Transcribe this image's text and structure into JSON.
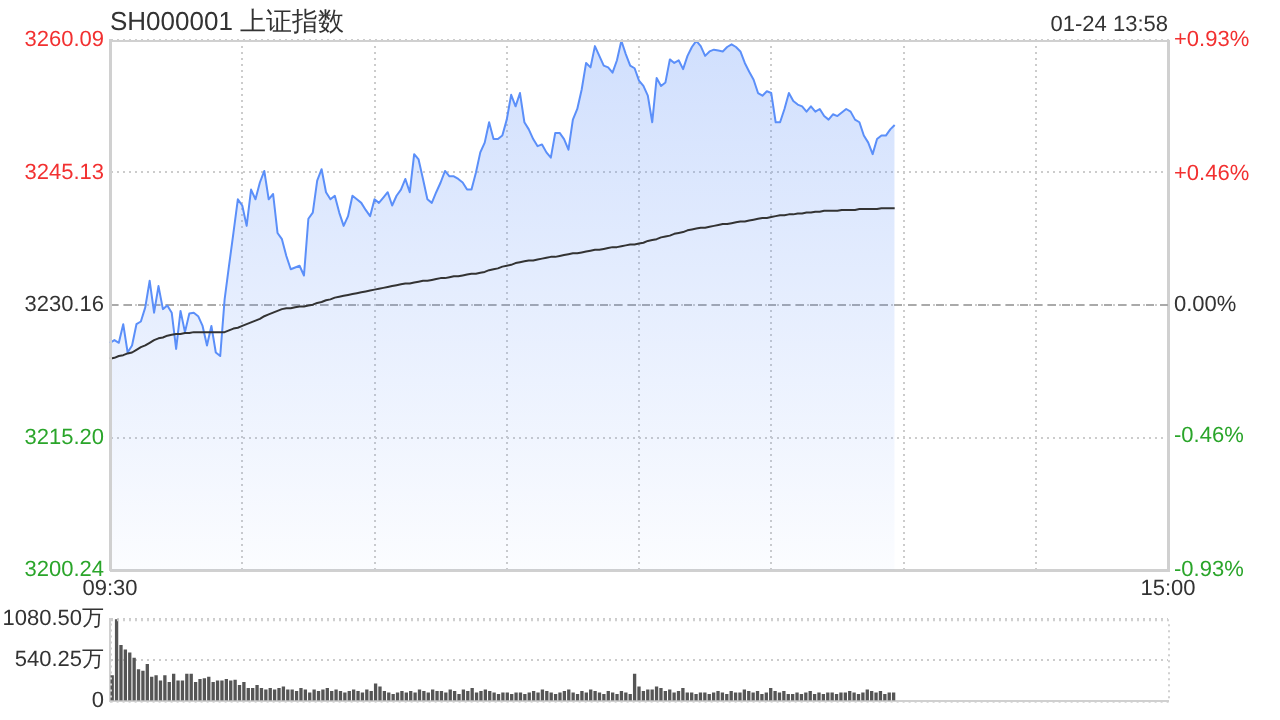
{
  "chart_data": [
    {
      "type": "area",
      "title": "SH000001 上证指数",
      "annotations": [
        "01-24 13:58"
      ],
      "categories": [
        "09:30",
        null,
        null,
        null,
        null,
        null,
        null,
        null,
        null,
        null,
        null,
        null,
        null,
        null,
        null,
        null,
        null,
        null,
        null,
        null,
        null,
        null,
        null,
        null,
        null,
        null,
        null,
        null,
        null,
        null,
        null,
        null,
        null,
        null,
        null,
        null,
        null,
        null,
        null,
        null,
        null,
        null,
        null,
        null,
        null,
        null,
        null,
        null,
        null,
        null,
        null,
        null,
        null,
        null,
        null,
        null,
        null,
        null,
        null,
        null,
        null,
        null,
        null,
        null,
        null,
        null,
        null,
        null,
        null,
        null,
        null,
        null,
        null,
        null,
        null,
        null,
        null,
        null,
        null,
        null,
        null,
        null,
        null,
        null,
        null,
        null,
        null,
        null,
        null,
        null,
        null,
        null,
        null,
        null,
        null,
        null,
        null,
        null,
        null,
        null,
        null,
        null,
        null,
        null,
        null,
        null,
        null,
        null,
        null,
        null,
        null,
        null,
        null,
        null,
        null,
        null,
        null,
        null,
        null,
        null,
        null,
        null,
        null,
        null,
        null,
        null,
        null,
        null,
        null,
        null,
        null,
        null,
        null,
        null,
        null,
        null,
        null,
        null,
        null,
        null,
        null,
        null,
        null,
        null,
        null,
        null,
        null,
        null,
        null,
        null,
        null,
        null,
        null,
        null,
        null,
        null,
        null,
        null,
        null,
        null,
        null,
        null,
        null,
        null,
        null,
        null,
        null,
        null,
        null,
        null,
        null,
        null,
        null,
        null,
        null,
        null,
        null,
        null,
        null,
        null,
        null,
        null,
        null,
        null,
        null,
        null,
        null,
        null,
        null,
        null,
        null,
        null,
        null,
        null,
        null,
        null,
        null,
        null,
        null,
        null,
        null,
        null,
        null,
        null,
        null,
        null,
        null,
        null,
        null,
        null,
        null,
        null,
        null,
        null,
        null,
        null,
        null,
        null,
        null,
        null,
        null,
        null,
        null,
        null,
        null,
        null,
        null,
        null,
        null,
        null,
        null,
        null,
        null,
        null,
        null,
        null,
        null,
        null,
        null,
        null,
        "15:00"
      ],
      "ylim": [
        3200.24,
        3260.09
      ],
      "yticks": [
        3200.24,
        {
          "value": 3215.2,
          "label": "3215.20"
        },
        3230.16,
        3245.13,
        3260.09
      ],
      "y2lim": [
        -0.93,
        0.93
      ],
      "y2ticks": [
        {
          "value": -0.93,
          "label": "-0.93%"
        },
        {
          "value": -0.46,
          "label": "-0.46%"
        },
        {
          "value": 0,
          "label": "0.00%"
        },
        {
          "value": 0.46,
          "label": "+0.46%"
        },
        {
          "value": 0.93,
          "label": "+0.93%"
        }
      ],
      "grid": true,
      "ref_lines": [
        {
          "axis": "y",
          "value": 3230.16,
          "line_style": "dashed",
          "color": "#aaaaaa"
        }
      ],
      "series": [
        {
          "type": "area",
          "color": "#5b8ff9",
          "values": [
            3225.9,
            3226.2,
            3225.9,
            3228.0,
            3224.8,
            3225.6,
            3228.0,
            3228.3,
            3229.9,
            3232.9,
            3229.3,
            3232.3,
            3229.7,
            3230.1,
            3229.3,
            3225.2,
            3229.5,
            3227.1,
            3229.2,
            3229.3,
            3228.9,
            3227.8,
            3225.6,
            3227.8,
            3224.8,
            3224.4,
            3230.8,
            3234.6,
            3238.3,
            3242.1,
            3241.4,
            3239.1,
            3243.2,
            3242.1,
            3244.0,
            3245.3,
            3242.1,
            3242.7,
            3238.3,
            3237.6,
            3235.7,
            3234.2,
            3234.4,
            3234.6,
            3233.5,
            3239.9,
            3240.6,
            3244.2,
            3245.5,
            3242.9,
            3242.1,
            3242.5,
            3240.6,
            3239.1,
            3240.2,
            3242.5,
            3242.1,
            3241.7,
            3240.9,
            3240.2,
            3242.1,
            3241.7,
            3242.3,
            3242.9,
            3241.4,
            3242.5,
            3243.2,
            3244.4,
            3242.9,
            3247.2,
            3246.6,
            3244.4,
            3242.1,
            3241.7,
            3242.9,
            3244.0,
            3245.3,
            3244.7,
            3244.7,
            3244.4,
            3244.0,
            3243.2,
            3243.2,
            3245.1,
            3247.4,
            3248.5,
            3250.8,
            3248.9,
            3248.9,
            3249.3,
            3251.1,
            3253.9,
            3252.6,
            3254.1,
            3250.8,
            3250.0,
            3248.9,
            3248.1,
            3248.3,
            3247.4,
            3246.8,
            3249.6,
            3249.6,
            3248.9,
            3247.7,
            3251.1,
            3252.3,
            3254.5,
            3257.5,
            3257.0,
            3259.4,
            3258.3,
            3257.2,
            3257.0,
            3256.4,
            3257.8,
            3260.0,
            3258.5,
            3257.2,
            3256.9,
            3255.5,
            3254.9,
            3253.8,
            3250.8,
            3255.8,
            3254.9,
            3255.3,
            3257.9,
            3257.5,
            3257.8,
            3256.8,
            3258.3,
            3259.3,
            3260.0,
            3259.4,
            3258.3,
            3258.8,
            3259.0,
            3258.9,
            3258.8,
            3259.3,
            3259.6,
            3259.3,
            3258.8,
            3257.5,
            3256.5,
            3255.6,
            3254.1,
            3253.8,
            3254.3,
            3254.1,
            3250.8,
            3250.8,
            3252.3,
            3254.1,
            3253.2,
            3252.8,
            3252.6,
            3252.0,
            3252.6,
            3252.0,
            3252.3,
            3251.5,
            3251.1,
            3251.7,
            3251.5,
            3251.9,
            3252.3,
            3252.0,
            3251.1,
            3250.8,
            3249.3,
            3248.5,
            3247.2,
            3248.9,
            3249.3,
            3249.3,
            3250.0,
            3250.5,
            null,
            null,
            null,
            null,
            null,
            null,
            null,
            null,
            null,
            null,
            null,
            null,
            null,
            null,
            null,
            null,
            null,
            null,
            null,
            null,
            null,
            null,
            null,
            null,
            null,
            null,
            null,
            null,
            null,
            null,
            null,
            null,
            null,
            null,
            null,
            null,
            null,
            null,
            null,
            null,
            null,
            null,
            null,
            null,
            null,
            null,
            null,
            null,
            null,
            null,
            null,
            null,
            null,
            null,
            null,
            null,
            null,
            null,
            null,
            null,
            null,
            null
          ]
        },
        {
          "type": "line",
          "color": "#333333",
          "values": [
            3224.1,
            3224.2,
            3224.4,
            3224.5,
            3224.7,
            3224.8,
            3225.1,
            3225.4,
            3225.6,
            3225.9,
            3226.2,
            3226.4,
            3226.5,
            3226.7,
            3226.8,
            3226.9,
            3226.9,
            3227.0,
            3227.0,
            3227.1,
            3227.1,
            3227.1,
            3227.1,
            3227.1,
            3227.1,
            3227.1,
            3227.1,
            3227.3,
            3227.5,
            3227.6,
            3227.8,
            3228.0,
            3228.2,
            3228.4,
            3228.6,
            3228.9,
            3229.1,
            3229.3,
            3229.5,
            3229.7,
            3229.8,
            3229.8,
            3229.9,
            3230.0,
            3230.0,
            3230.1,
            3230.2,
            3230.4,
            3230.5,
            3230.7,
            3230.8,
            3231.0,
            3231.1,
            3231.2,
            3231.3,
            3231.4,
            3231.5,
            3231.6,
            3231.7,
            3231.8,
            3231.9,
            3232.0,
            3232.1,
            3232.2,
            3232.3,
            3232.4,
            3232.5,
            3232.6,
            3232.6,
            3232.7,
            3232.8,
            3232.9,
            3232.9,
            3233.0,
            3233.1,
            3233.2,
            3233.2,
            3233.3,
            3233.4,
            3233.4,
            3233.5,
            3233.6,
            3233.7,
            3233.7,
            3233.8,
            3233.9,
            3234.1,
            3234.2,
            3234.3,
            3234.5,
            3234.6,
            3234.7,
            3234.9,
            3235.0,
            3235.1,
            3235.2,
            3235.2,
            3235.3,
            3235.4,
            3235.5,
            3235.6,
            3235.6,
            3235.7,
            3235.8,
            3235.9,
            3236.0,
            3236.0,
            3236.1,
            3236.2,
            3236.3,
            3236.4,
            3236.4,
            3236.5,
            3236.6,
            3236.7,
            3236.7,
            3236.8,
            3236.9,
            3237.0,
            3237.0,
            3237.1,
            3237.2,
            3237.4,
            3237.5,
            3237.6,
            3237.8,
            3237.9,
            3238.0,
            3238.2,
            3238.3,
            3238.4,
            3238.6,
            3238.7,
            3238.8,
            3238.9,
            3238.9,
            3239.0,
            3239.1,
            3239.2,
            3239.3,
            3239.3,
            3239.4,
            3239.5,
            3239.6,
            3239.6,
            3239.7,
            3239.8,
            3239.9,
            3240.0,
            3240.0,
            3240.1,
            3240.2,
            3240.3,
            3240.3,
            3240.4,
            3240.4,
            3240.5,
            3240.5,
            3240.6,
            3240.6,
            3240.7,
            3240.7,
            3240.8,
            3240.8,
            3240.8,
            3240.8,
            3240.9,
            3240.9,
            3240.9,
            3240.9,
            3241.0,
            3241.0,
            3241.0,
            3241.0,
            3241.0,
            3241.1,
            3241.1,
            3241.1,
            3241.1,
            null,
            null,
            null,
            null,
            null,
            null,
            null,
            null,
            null,
            null,
            null,
            null,
            null,
            null,
            null,
            null,
            null,
            null,
            null,
            null,
            null,
            null,
            null,
            null,
            null,
            null,
            null,
            null,
            null,
            null,
            null,
            null,
            null,
            null,
            null,
            null,
            null,
            null,
            null,
            null,
            null,
            null,
            null,
            null,
            null,
            null,
            null,
            null,
            null,
            null,
            null,
            null,
            null,
            null,
            null,
            null,
            null,
            null,
            null,
            null,
            null,
            null
          ]
        }
      ]
    },
    {
      "type": "bar",
      "ylim": [
        0,
        1080.5
      ],
      "yticks": [
        0,
        {
          "value": 540.25,
          "label": "540.25万"
        },
        {
          "value": 1080.5,
          "label": "1080.50万"
        }
      ],
      "grid": "y",
      "tick_labels": "y",
      "color": "#555555",
      "categories": [
        null,
        null,
        null,
        null,
        null,
        null,
        null,
        null,
        null,
        null,
        null,
        null,
        null,
        null,
        null,
        null,
        null,
        null,
        null,
        null,
        null,
        null,
        null,
        null,
        null,
        null,
        null,
        null,
        null,
        null,
        null,
        null,
        null,
        null,
        null,
        null,
        null,
        null,
        null,
        null,
        null,
        null,
        null,
        null,
        null,
        null,
        null,
        null,
        null,
        null,
        null,
        null,
        null,
        null,
        null,
        null,
        null,
        null,
        null,
        null,
        null,
        null,
        null,
        null,
        null,
        null,
        null,
        null,
        null,
        null,
        null,
        null,
        null,
        null,
        null,
        null,
        null,
        null,
        null,
        null,
        null,
        null,
        null,
        null,
        null,
        null,
        null,
        null,
        null,
        null,
        null,
        null,
        null,
        null,
        null,
        null,
        null,
        null,
        null,
        null,
        null,
        null,
        null,
        null,
        null,
        null,
        null,
        null,
        null,
        null,
        null,
        null,
        null,
        null,
        null,
        null,
        null,
        null,
        null,
        null,
        null,
        null,
        null,
        null,
        null,
        null,
        null,
        null,
        null,
        null,
        null,
        null,
        null,
        null,
        null,
        null,
        null,
        null,
        null,
        null,
        null,
        null,
        null,
        null,
        null,
        null,
        null,
        null,
        null,
        null,
        null,
        null,
        null,
        null,
        null,
        null,
        null,
        null,
        null,
        null,
        null,
        null,
        null,
        null,
        null,
        null,
        null,
        null,
        null,
        null,
        null,
        null,
        null,
        null,
        null,
        null,
        null,
        null,
        null,
        null,
        null,
        null,
        null,
        null,
        null,
        null,
        null,
        null,
        null,
        null,
        null,
        null,
        null,
        null,
        null,
        null,
        null,
        null,
        null,
        null,
        null,
        null,
        null,
        null,
        null,
        null,
        null,
        null,
        null,
        null,
        null,
        null,
        null,
        null,
        null,
        null,
        null,
        null,
        null,
        null,
        null,
        null,
        null,
        null,
        null,
        null,
        null,
        null,
        null,
        null,
        null,
        null,
        null,
        null,
        null,
        null,
        null,
        null,
        null,
        null,
        null
      ],
      "values": [
        330,
        1080.5,
        730,
        670,
        630,
        560,
        410,
        390,
        480,
        310,
        330,
        260,
        330,
        240,
        350,
        260,
        260,
        350,
        350,
        240,
        280,
        290,
        310,
        240,
        260,
        260,
        280,
        260,
        270,
        200,
        240,
        160,
        160,
        200,
        160,
        140,
        160,
        140,
        160,
        180,
        140,
        140,
        120,
        160,
        140,
        100,
        140,
        120,
        140,
        160,
        120,
        140,
        120,
        100,
        120,
        140,
        120,
        100,
        140,
        120,
        220,
        180,
        120,
        100,
        80,
        100,
        120,
        100,
        120,
        100,
        140,
        120,
        100,
        140,
        120,
        120,
        100,
        140,
        120,
        80,
        140,
        120,
        160,
        100,
        120,
        140,
        120,
        100,
        80,
        100,
        100,
        80,
        100,
        100,
        80,
        100,
        120,
        100,
        140,
        120,
        100,
        80,
        100,
        120,
        140,
        100,
        80,
        120,
        100,
        140,
        120,
        100,
        80,
        120,
        100,
        80,
        120,
        100,
        80,
        350,
        180,
        120,
        140,
        140,
        180,
        160,
        120,
        140,
        100,
        120,
        160,
        100,
        100,
        80,
        100,
        100,
        80,
        100,
        120,
        100,
        80,
        120,
        100,
        100,
        140,
        120,
        100,
        120,
        80,
        100,
        160,
        120,
        100,
        120,
        80,
        80,
        100,
        80,
        100,
        120,
        80,
        100,
        80,
        100,
        100,
        80,
        100,
        100,
        120,
        100,
        80,
        100,
        140,
        120,
        100,
        120,
        80,
        100,
        100,
        null,
        null,
        null,
        null,
        null,
        null,
        null,
        null,
        null,
        null,
        null,
        null,
        null,
        null,
        null,
        null,
        null,
        null,
        null,
        null,
        null,
        null,
        null,
        null,
        null,
        null,
        null,
        null,
        null,
        null,
        null,
        null,
        null,
        null,
        null,
        null,
        null,
        null,
        null,
        null,
        null,
        null,
        null,
        null,
        null,
        null,
        null,
        null,
        null,
        null,
        null,
        null,
        null,
        null,
        null,
        null,
        null,
        null,
        null,
        null,
        null,
        null
      ]
    }
  ]
}
